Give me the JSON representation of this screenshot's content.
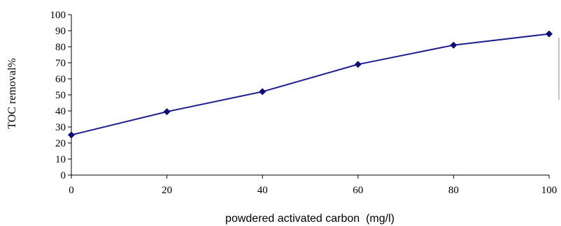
{
  "chart_data": {
    "type": "line",
    "x": [
      0,
      20,
      40,
      60,
      80,
      100
    ],
    "series": [
      {
        "values": [
          25,
          39.5,
          52,
          69,
          81,
          88
        ]
      }
    ],
    "xlabel": "powdered activated carbon  (mg/l)",
    "ylabel": "TOC removal%",
    "xlim": [
      0,
      100
    ],
    "ylim": [
      0,
      100
    ],
    "x_ticks": [
      "0",
      "20",
      "40",
      "60",
      "80",
      "100"
    ],
    "y_ticks": [
      "0",
      "10",
      "20",
      "30",
      "40",
      "50",
      "60",
      "70",
      "80",
      "90",
      "100"
    ],
    "grid": false,
    "legend": "none",
    "colors": {
      "line": "#1f1f8f",
      "marker": "#0b0b7a",
      "axis": "#000000"
    }
  }
}
